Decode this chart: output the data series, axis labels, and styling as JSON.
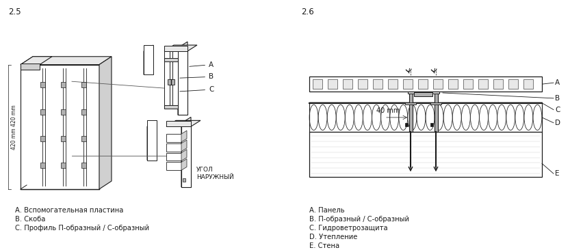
{
  "bg_color": "#ffffff",
  "line_color": "#1a1a1a",
  "section_25_label": "2.5",
  "section_26_label": "2.6",
  "legend_25": [
    "A. Вспомогательная пластина",
    "B. Скоба",
    "C. Профиль П-образный / С-образный"
  ],
  "legend_26": [
    "A. Панель",
    "B. П-образный / С-образный",
    "C. Гидроветрозащита",
    "D. Утепление",
    "E. Стена"
  ],
  "dim_label": "420 mm",
  "dim_label2": "420 mm",
  "mm40_label": "40 mm",
  "ugol_label": "УГОЛ\nНАРУЖНЫЙ"
}
